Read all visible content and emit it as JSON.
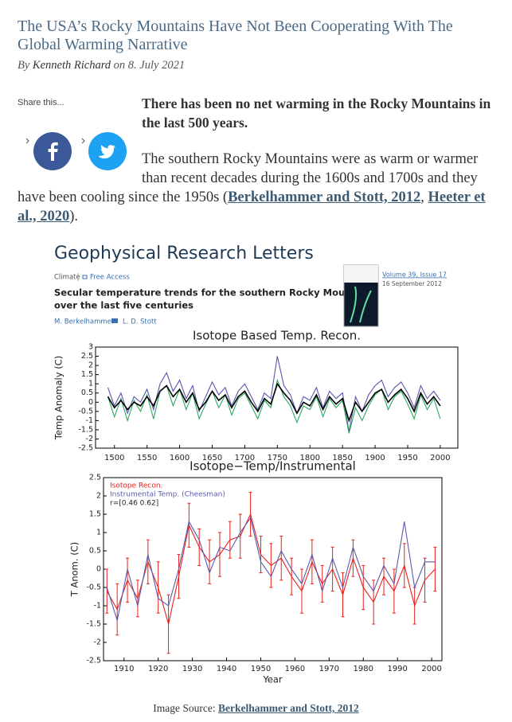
{
  "header": {
    "title": "The USA’s Rocky Mountains Have Not Been Cooperating With The Global Warming Narrative",
    "byline": {
      "prefix": "By",
      "author": "Kenneth Richard",
      "on": "on",
      "date": "8. July 2021"
    }
  },
  "share": {
    "label": "Share this..."
  },
  "article": {
    "lead": "There has been no net warming in the Rocky Mountains in the last 500 years.",
    "paragraph": {
      "text": "The southern Rocky Mountains were as warm or warmer than recent decades during the 1600s and 1700s and they have been cooling since the 1950s (",
      "link1": "Berkelhammer and Stott, 2012",
      "sep": ", ",
      "link2": "Heeter et al., 2020",
      "end": ")."
    }
  },
  "figure": {
    "journal": "Geophysical Research Letters",
    "section": "Climate",
    "access": "Free Access",
    "article_title": [
      "Secular temperature trends for the southern Rocky Mountains",
      "over the last five centuries"
    ],
    "authors": [
      "M. Berkelhammer",
      "L. D. Stott"
    ],
    "volume": "Volume 39, Issue 17",
    "date": "16 September 2012"
  },
  "chart_data": [
    {
      "type": "line",
      "title": "Isotope Based Temp. Recon.",
      "ylabel": "Temp Anomaly (C)",
      "x": [
        1490,
        1500,
        1510,
        1520,
        1530,
        1540,
        1550,
        1560,
        1570,
        1580,
        1590,
        1600,
        1610,
        1620,
        1630,
        1640,
        1650,
        1660,
        1670,
        1680,
        1690,
        1700,
        1710,
        1720,
        1730,
        1740,
        1750,
        1760,
        1770,
        1780,
        1790,
        1800,
        1810,
        1820,
        1830,
        1840,
        1850,
        1860,
        1870,
        1880,
        1890,
        1900,
        1910,
        1920,
        1930,
        1940,
        1950,
        1960,
        1970,
        1980,
        1990,
        2000
      ],
      "series": [
        {
          "color": "#5a55b0",
          "values": [
            0.8,
            -0.2,
            0.5,
            -0.6,
            0.3,
            0.0,
            0.7,
            -0.4,
            1.0,
            1.6,
            0.6,
            1.2,
            0.2,
            0.9,
            -0.5,
            0.3,
            1.1,
            0.4,
            0.8,
            -0.2,
            0.6,
            1.0,
            0.3,
            -0.4,
            0.5,
            0.2,
            2.5,
            0.9,
            0.4,
            -0.6,
            0.3,
            0.1,
            0.8,
            -0.3,
            0.6,
            0.2,
            0.5,
            -1.6,
            0.3,
            -0.5,
            0.4,
            0.9,
            1.2,
            0.3,
            0.8,
            1.1,
            0.5,
            -0.3,
            0.9,
            0.2,
            0.6,
            0.1
          ]
        },
        {
          "color": "#2ca860",
          "values": [
            0.3,
            -0.8,
            0.2,
            -1.0,
            0.1,
            -0.5,
            0.4,
            -0.9,
            0.6,
            0.9,
            -0.2,
            0.7,
            -0.4,
            0.5,
            -0.9,
            -0.1,
            0.6,
            -0.3,
            0.4,
            -0.7,
            0.2,
            0.5,
            -0.2,
            -0.9,
            0.1,
            -0.3,
            1.2,
            0.3,
            -0.2,
            -1.1,
            -0.2,
            -0.4,
            0.3,
            -0.8,
            0.2,
            -0.3,
            0.1,
            -1.7,
            -0.3,
            -1.0,
            -0.2,
            0.4,
            0.7,
            -0.4,
            0.3,
            0.6,
            -0.1,
            -0.9,
            0.4,
            -0.4,
            0.2,
            -0.9
          ]
        },
        {
          "color": "#000000",
          "values": [
            0.3,
            -0.3,
            0.1,
            -0.4,
            0.0,
            -0.2,
            0.3,
            -0.2,
            0.6,
            0.9,
            0.3,
            0.7,
            0.0,
            0.5,
            -0.4,
            0.0,
            0.6,
            0.1,
            0.4,
            -0.3,
            0.3,
            0.6,
            0.0,
            -0.5,
            0.2,
            -0.1,
            1.0,
            0.5,
            0.1,
            -0.6,
            0.0,
            -0.2,
            0.4,
            -0.4,
            0.3,
            -0.1,
            0.2,
            -1.0,
            0.0,
            -0.5,
            0.0,
            0.5,
            0.7,
            0.0,
            0.4,
            0.7,
            0.2,
            -0.5,
            0.5,
            -0.1,
            0.3,
            -0.2
          ]
        }
      ],
      "xlim": [
        1471,
        2027
      ],
      "ylim": [
        -2.5,
        3
      ],
      "xticks": [
        1500,
        1550,
        1600,
        1650,
        1700,
        1750,
        1800,
        1850,
        1900,
        1950,
        2000
      ],
      "yticks": [
        3,
        2.5,
        2,
        1.5,
        1,
        0.5,
        0,
        -0.5,
        -1,
        -1.5,
        -2,
        -2.5
      ]
    },
    {
      "type": "line",
      "title": "Isotope−Temp/Instrumental",
      "xlabel": "Year",
      "ylabel": "T Anom. (C)",
      "x": [
        1905,
        1908,
        1911,
        1914,
        1917,
        1920,
        1923,
        1926,
        1929,
        1932,
        1935,
        1938,
        1941,
        1944,
        1947,
        1950,
        1953,
        1956,
        1959,
        1962,
        1965,
        1968,
        1971,
        1974,
        1977,
        1980,
        1983,
        1986,
        1989,
        1992,
        1995,
        1998,
        2001
      ],
      "series": [
        {
          "name": "Isotope Recon.",
          "color": "#e8201c",
          "values": [
            -0.6,
            -1.1,
            -0.3,
            -0.8,
            0.2,
            -0.5,
            -1.5,
            -0.2,
            1.2,
            0.6,
            0.2,
            0.4,
            0.8,
            0.9,
            1.5,
            0.4,
            0.1,
            0.3,
            -0.2,
            -0.6,
            0.2,
            -0.4,
            0.0,
            -0.7,
            0.3,
            -0.5,
            -0.9,
            -0.2,
            -0.6,
            0.1,
            -1.0,
            -0.3,
            0.0
          ],
          "errors": [
            0.6,
            0.7,
            0.6,
            0.5,
            0.6,
            0.7,
            0.8,
            0.6,
            0.6,
            0.5,
            0.6,
            0.6,
            0.5,
            0.6,
            0.6,
            0.5,
            0.6,
            0.6,
            0.5,
            0.6,
            0.6,
            0.5,
            0.6,
            0.6,
            0.5,
            0.6,
            0.6,
            0.5,
            0.6,
            0.6,
            0.5,
            0.6,
            0.6
          ]
        },
        {
          "name": "Instrumental Temp. (Cheesman)",
          "color": "#5a5ab0",
          "values": [
            -0.5,
            -1.4,
            0.0,
            -1.0,
            0.4,
            -0.8,
            -1.0,
            0.0,
            1.3,
            0.8,
            -0.1,
            0.6,
            0.5,
            1.0,
            1.4,
            0.2,
            -0.2,
            0.5,
            0.0,
            -0.4,
            0.4,
            -0.6,
            0.3,
            -0.5,
            0.6,
            -0.2,
            -0.6,
            0.1,
            -0.4,
            1.3,
            -0.5,
            0.2,
            0.2
          ]
        }
      ],
      "annotation": "r=[0.46 0.62]",
      "xlim": [
        1904,
        2003
      ],
      "ylim": [
        -2.5,
        2.5
      ],
      "xticks": [
        1910,
        1920,
        1930,
        1940,
        1950,
        1960,
        1970,
        1980,
        1990,
        2000
      ],
      "yticks": [
        2.5,
        2,
        1.5,
        1,
        0.5,
        0,
        -0.5,
        -1,
        -1.5,
        -2,
        -2.5
      ]
    }
  ],
  "caption": {
    "prefix": "Image Source:",
    "link": "Berkelhammer and Stott, 2012"
  }
}
